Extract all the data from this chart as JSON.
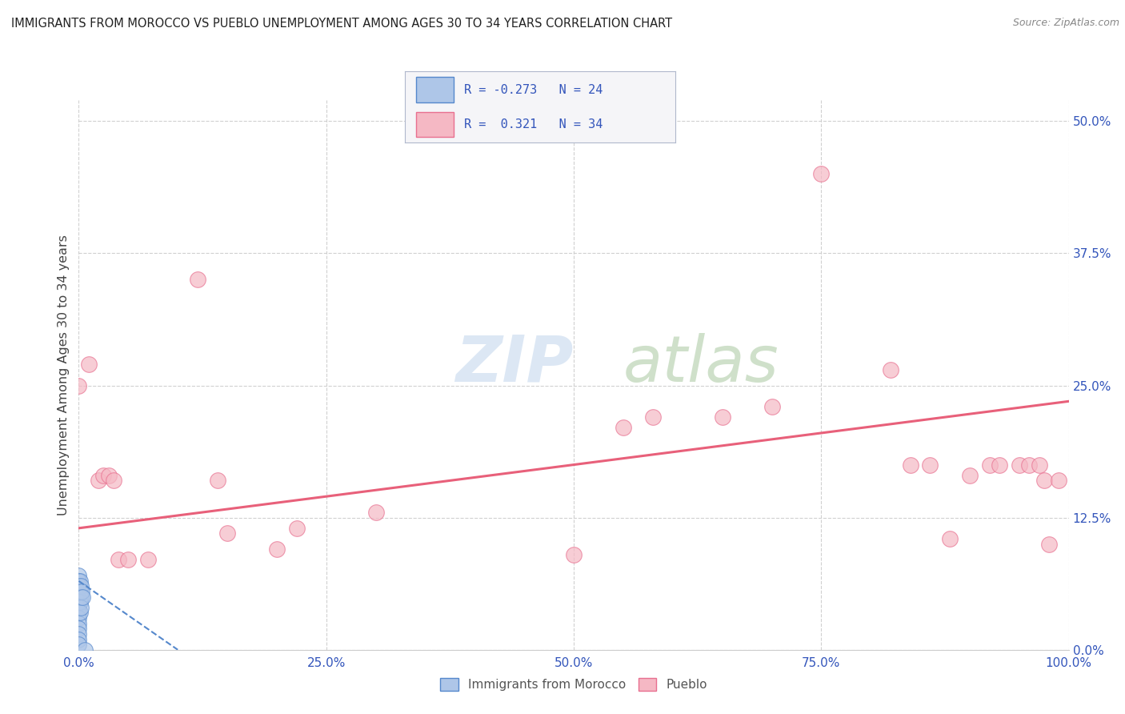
{
  "title": "IMMIGRANTS FROM MOROCCO VS PUEBLO UNEMPLOYMENT AMONG AGES 30 TO 34 YEARS CORRELATION CHART",
  "source": "Source: ZipAtlas.com",
  "ylabel": "Unemployment Among Ages 30 to 34 years",
  "xlim": [
    0.0,
    1.0
  ],
  "ylim": [
    0.0,
    0.52
  ],
  "xticks": [
    0.0,
    0.25,
    0.5,
    0.75,
    1.0
  ],
  "xticklabels": [
    "0.0%",
    "25.0%",
    "50.0%",
    "75.0%",
    "100.0%"
  ],
  "yticks": [
    0.0,
    0.125,
    0.25,
    0.375,
    0.5
  ],
  "yticklabels": [
    "0.0%",
    "12.5%",
    "25.0%",
    "37.5%",
    "50.0%"
  ],
  "blue_R": "-0.273",
  "blue_N": "24",
  "pink_R": "0.321",
  "pink_N": "34",
  "watermark_zip": "ZIP",
  "watermark_atlas": "atlas",
  "blue_color": "#aec6e8",
  "pink_color": "#f5b8c4",
  "blue_edge_color": "#5588cc",
  "pink_edge_color": "#e87090",
  "blue_line_color": "#5588cc",
  "pink_line_color": "#e8607a",
  "blue_scatter": [
    [
      0.0,
      0.07
    ],
    [
      0.0,
      0.065
    ],
    [
      0.0,
      0.06
    ],
    [
      0.0,
      0.055
    ],
    [
      0.0,
      0.05
    ],
    [
      0.0,
      0.045
    ],
    [
      0.0,
      0.04
    ],
    [
      0.0,
      0.035
    ],
    [
      0.0,
      0.03
    ],
    [
      0.0,
      0.025
    ],
    [
      0.0,
      0.02
    ],
    [
      0.0,
      0.015
    ],
    [
      0.0,
      0.01
    ],
    [
      0.0,
      0.005
    ],
    [
      0.001,
      0.065
    ],
    [
      0.001,
      0.055
    ],
    [
      0.001,
      0.045
    ],
    [
      0.001,
      0.035
    ],
    [
      0.002,
      0.06
    ],
    [
      0.002,
      0.05
    ],
    [
      0.002,
      0.04
    ],
    [
      0.003,
      0.055
    ],
    [
      0.004,
      0.05
    ],
    [
      0.006,
      0.0
    ]
  ],
  "pink_scatter": [
    [
      0.0,
      0.25
    ],
    [
      0.01,
      0.27
    ],
    [
      0.02,
      0.16
    ],
    [
      0.025,
      0.165
    ],
    [
      0.03,
      0.165
    ],
    [
      0.035,
      0.16
    ],
    [
      0.04,
      0.085
    ],
    [
      0.05,
      0.085
    ],
    [
      0.07,
      0.085
    ],
    [
      0.12,
      0.35
    ],
    [
      0.14,
      0.16
    ],
    [
      0.15,
      0.11
    ],
    [
      0.2,
      0.095
    ],
    [
      0.22,
      0.115
    ],
    [
      0.3,
      0.13
    ],
    [
      0.5,
      0.09
    ],
    [
      0.55,
      0.21
    ],
    [
      0.58,
      0.22
    ],
    [
      0.65,
      0.22
    ],
    [
      0.7,
      0.23
    ],
    [
      0.75,
      0.45
    ],
    [
      0.82,
      0.265
    ],
    [
      0.84,
      0.175
    ],
    [
      0.86,
      0.175
    ],
    [
      0.88,
      0.105
    ],
    [
      0.9,
      0.165
    ],
    [
      0.92,
      0.175
    ],
    [
      0.93,
      0.175
    ],
    [
      0.95,
      0.175
    ],
    [
      0.96,
      0.175
    ],
    [
      0.97,
      0.175
    ],
    [
      0.975,
      0.16
    ],
    [
      0.98,
      0.1
    ],
    [
      0.99,
      0.16
    ]
  ],
  "blue_line_x": [
    0.0,
    0.1
  ],
  "blue_line_y": [
    0.065,
    0.0
  ],
  "pink_line_x": [
    0.0,
    1.0
  ],
  "pink_line_y": [
    0.115,
    0.235
  ],
  "background_color": "#ffffff",
  "grid_color": "#d0d0d0",
  "title_color": "#222222",
  "axis_label_color": "#444444",
  "tick_color": "#3355bb",
  "legend_label_color": "#3355bb"
}
